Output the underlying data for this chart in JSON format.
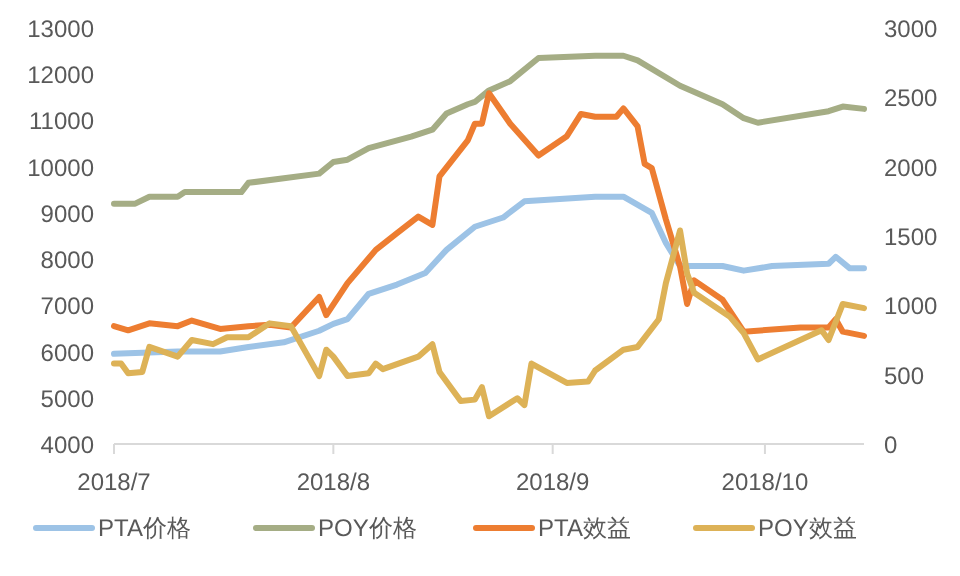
{
  "chart_data": {
    "type": "line",
    "xlim": [
      "2018-07-01",
      "2018-10-15"
    ],
    "xticks": [
      {
        "value": "2018-07-01",
        "label": "2018/7"
      },
      {
        "value": "2018-08-01",
        "label": "2018/8"
      },
      {
        "value": "2018-09-01",
        "label": "2018/9"
      },
      {
        "value": "2018-10-01",
        "label": "2018/10"
      }
    ],
    "ylim": [
      4000,
      13000
    ],
    "yticks": [
      4000,
      5000,
      6000,
      7000,
      8000,
      9000,
      10000,
      11000,
      12000,
      13000
    ],
    "y2lim": [
      0,
      3000
    ],
    "y2ticks": [
      0,
      500,
      1000,
      1500,
      2000,
      2500,
      3000
    ],
    "grid": false,
    "legend": "bottom",
    "marker": "none",
    "line_style": "solid",
    "series": [
      {
        "name": "PTA价格",
        "color": "#9dc3e6",
        "x": [
          "2018-07-01",
          "2018-07-10",
          "2018-07-16",
          "2018-07-20",
          "2018-07-25",
          "2018-07-30",
          "2018-08-01",
          "2018-08-03",
          "2018-08-06",
          "2018-08-10",
          "2018-08-14",
          "2018-08-17",
          "2018-08-21",
          "2018-08-25",
          "2018-08-28",
          "2018-09-02",
          "2018-09-07",
          "2018-09-11",
          "2018-09-15",
          "2018-09-17",
          "2018-09-19",
          "2018-09-25",
          "2018-09-28",
          "2018-10-02",
          "2018-10-10",
          "2018-10-11",
          "2018-10-13",
          "2018-10-15"
        ],
        "values": [
          5950,
          6000,
          6000,
          6100,
          6200,
          6450,
          6600,
          6700,
          7250,
          7450,
          7700,
          8200,
          8700,
          8900,
          9250,
          9300,
          9350,
          9350,
          9000,
          8350,
          7850,
          7850,
          7750,
          7850,
          7900,
          8050,
          7800,
          7800
        ]
      },
      {
        "name": "POY价格",
        "color": "#a5ad85",
        "x": [
          "2018-07-01",
          "2018-07-04",
          "2018-07-06",
          "2018-07-10",
          "2018-07-11",
          "2018-07-19",
          "2018-07-20",
          "2018-07-25",
          "2018-07-30",
          "2018-08-01",
          "2018-08-03",
          "2018-08-06",
          "2018-08-12",
          "2018-08-15",
          "2018-08-17",
          "2018-08-20",
          "2018-08-21",
          "2018-08-23",
          "2018-08-26",
          "2018-08-30",
          "2018-09-07",
          "2018-09-11",
          "2018-09-13",
          "2018-09-19",
          "2018-09-25",
          "2018-09-28",
          "2018-09-30",
          "2018-10-10",
          "2018-10-12",
          "2018-10-15"
        ],
        "values": [
          9200,
          9200,
          9350,
          9350,
          9450,
          9450,
          9650,
          9750,
          9850,
          10100,
          10150,
          10400,
          10650,
          10800,
          11150,
          11350,
          11400,
          11650,
          11850,
          12350,
          12400,
          12400,
          12300,
          11750,
          11350,
          11050,
          10950,
          11200,
          11300,
          11250
        ]
      },
      {
        "name": "PTA效益",
        "color": "#ed7d31",
        "axis": "y2",
        "x": [
          "2018-07-01",
          "2018-07-03",
          "2018-07-06",
          "2018-07-10",
          "2018-07-12",
          "2018-07-16",
          "2018-07-20",
          "2018-07-23",
          "2018-07-26",
          "2018-07-30",
          "2018-07-31",
          "2018-08-03",
          "2018-08-07",
          "2018-08-10",
          "2018-08-13",
          "2018-08-15",
          "2018-08-16",
          "2018-08-20",
          "2018-08-21",
          "2018-08-22",
          "2018-08-23",
          "2018-08-26",
          "2018-08-30",
          "2018-09-03",
          "2018-09-05",
          "2018-09-07",
          "2018-09-10",
          "2018-09-11",
          "2018-09-13",
          "2018-09-14",
          "2018-09-15",
          "2018-09-17",
          "2018-09-19",
          "2018-09-20",
          "2018-09-21",
          "2018-09-25",
          "2018-09-28",
          "2018-10-06",
          "2018-10-10",
          "2018-10-11",
          "2018-10-12",
          "2018-10-15"
        ],
        "values": [
          850,
          820,
          870,
          850,
          890,
          830,
          850,
          860,
          840,
          1060,
          930,
          1160,
          1400,
          1520,
          1640,
          1580,
          1930,
          2190,
          2310,
          2310,
          2530,
          2310,
          2080,
          2220,
          2380,
          2360,
          2360,
          2420,
          2290,
          2020,
          1990,
          1620,
          1280,
          1010,
          1180,
          1040,
          810,
          840,
          840,
          900,
          810,
          780
        ]
      },
      {
        "name": "POY效益",
        "color": "#ddb257",
        "axis": "y2",
        "x": [
          "2018-07-01",
          "2018-07-02",
          "2018-07-03",
          "2018-07-05",
          "2018-07-06",
          "2018-07-10",
          "2018-07-12",
          "2018-07-15",
          "2018-07-17",
          "2018-07-20",
          "2018-07-23",
          "2018-07-26",
          "2018-07-30",
          "2018-07-31",
          "2018-08-01",
          "2018-08-03",
          "2018-08-06",
          "2018-08-07",
          "2018-08-08",
          "2018-08-13",
          "2018-08-15",
          "2018-08-16",
          "2018-08-19",
          "2018-08-21",
          "2018-08-22",
          "2018-08-23",
          "2018-08-27",
          "2018-08-28",
          "2018-08-29",
          "2018-09-03",
          "2018-09-06",
          "2018-09-07",
          "2018-09-11",
          "2018-09-13",
          "2018-09-16",
          "2018-09-17",
          "2018-09-19",
          "2018-09-20",
          "2018-09-21",
          "2018-09-26",
          "2018-09-28",
          "2018-09-30",
          "2018-10-09",
          "2018-10-10",
          "2018-10-12",
          "2018-10-15"
        ],
        "values": [
          580,
          580,
          510,
          520,
          700,
          630,
          750,
          720,
          770,
          770,
          870,
          850,
          490,
          680,
          630,
          490,
          510,
          580,
          540,
          630,
          720,
          520,
          310,
          320,
          410,
          200,
          330,
          280,
          580,
          440,
          450,
          530,
          680,
          700,
          900,
          1160,
          1540,
          1230,
          1090,
          920,
          800,
          610,
          820,
          750,
          1010,
          980
        ]
      }
    ]
  }
}
